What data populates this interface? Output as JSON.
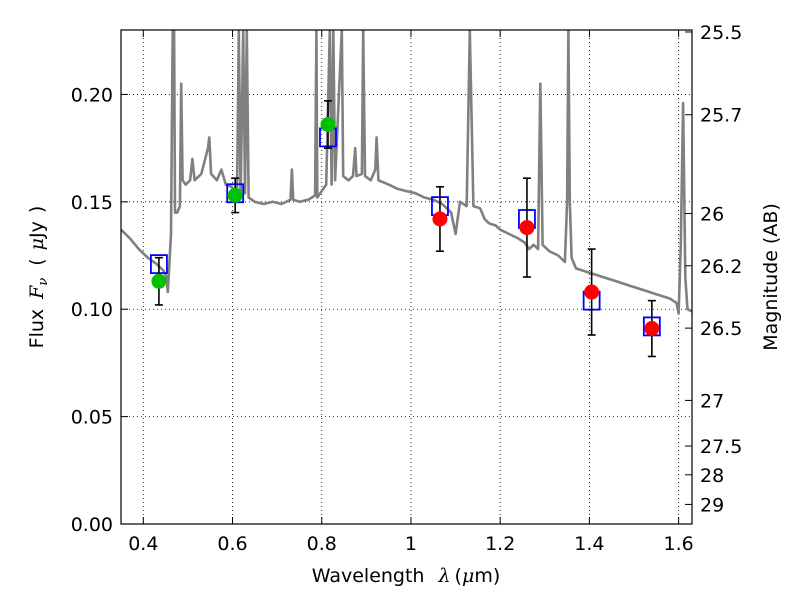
{
  "chart_data": {
    "type": "scatter",
    "xlabel": "Wavelength",
    "xlabel_symbol": "λ",
    "xlabel_unit_open": "(",
    "xlabel_unit_mu": "μ",
    "xlabel_unit_rest": "m)",
    "ylabel": "Flux",
    "ylabel_symbol": "F",
    "ylabel_symbol_sub": "ν",
    "ylabel_unit_open": "(",
    "ylabel_unit_mu": "μ",
    "ylabel_unit_rest": "Jy",
    "ylabel_unit_close": ")",
    "y2label": "Magnitude (AB)",
    "xlim": [
      0.35,
      1.63
    ],
    "ylim": [
      0.0,
      0.23
    ],
    "grid": true,
    "xticks": [
      0.4,
      0.6,
      0.8,
      1.0,
      1.2,
      1.4,
      1.6
    ],
    "xtick_labels": [
      "0.4",
      "0.6",
      "0.8",
      "1",
      "1.2",
      "1.4",
      "1.6"
    ],
    "yticks": [
      0.0,
      0.05,
      0.1,
      0.15,
      0.2
    ],
    "ytick_labels": [
      "0.00",
      "0.05",
      "0.10",
      "0.15",
      "0.20"
    ],
    "y2ticks": [
      {
        "label": "25.5",
        "mag": 25.5
      },
      {
        "label": "25.7",
        "mag": 25.7
      },
      {
        "label": "26",
        "mag": 26.0
      },
      {
        "label": "26.2",
        "mag": 26.2
      },
      {
        "label": "26.5",
        "mag": 26.5
      },
      {
        "label": "27",
        "mag": 27.0
      },
      {
        "label": "27.5",
        "mag": 27.5
      },
      {
        "label": "28",
        "mag": 28.0
      },
      {
        "label": "29",
        "mag": 29.0
      }
    ],
    "colors": {
      "model": "#808080",
      "model_fluxes": "#0000ff",
      "hst_points": "#00c000",
      "ir_points": "#ff0000",
      "errorbar": "#000000",
      "grid": "#000000"
    },
    "observed": [
      {
        "x": 0.435,
        "y": 0.113,
        "err": 0.011,
        "color": "green"
      },
      {
        "x": 0.606,
        "y": 0.153,
        "err": 0.008,
        "color": "green"
      },
      {
        "x": 0.814,
        "y": 0.186,
        "err": 0.011,
        "color": "green"
      },
      {
        "x": 1.065,
        "y": 0.142,
        "err": 0.015,
        "color": "red"
      },
      {
        "x": 1.26,
        "y": 0.138,
        "err": 0.023,
        "color": "red"
      },
      {
        "x": 1.405,
        "y": 0.108,
        "err": 0.02,
        "color": "red"
      },
      {
        "x": 1.54,
        "y": 0.091,
        "err": 0.013,
        "color": "red"
      }
    ],
    "model_fluxes": [
      {
        "x": 0.435,
        "y": 0.121
      },
      {
        "x": 0.606,
        "y": 0.154
      },
      {
        "x": 0.814,
        "y": 0.18
      },
      {
        "x": 1.065,
        "y": 0.148
      },
      {
        "x": 1.26,
        "y": 0.142
      },
      {
        "x": 1.405,
        "y": 0.104
      },
      {
        "x": 1.54,
        "y": 0.092
      }
    ],
    "model_spectrum": [
      [
        0.35,
        0.137
      ],
      [
        0.37,
        0.133
      ],
      [
        0.39,
        0.128
      ],
      [
        0.41,
        0.124
      ],
      [
        0.43,
        0.121
      ],
      [
        0.445,
        0.118
      ],
      [
        0.452,
        0.115
      ],
      [
        0.455,
        0.108
      ],
      [
        0.458,
        0.12
      ],
      [
        0.462,
        0.135
      ],
      [
        0.466,
        0.23
      ],
      [
        0.469,
        0.23
      ],
      [
        0.471,
        0.145
      ],
      [
        0.476,
        0.145
      ],
      [
        0.482,
        0.148
      ],
      [
        0.485,
        0.205
      ],
      [
        0.488,
        0.16
      ],
      [
        0.495,
        0.158
      ],
      [
        0.505,
        0.16
      ],
      [
        0.51,
        0.17
      ],
      [
        0.515,
        0.16
      ],
      [
        0.53,
        0.163
      ],
      [
        0.545,
        0.175
      ],
      [
        0.548,
        0.18
      ],
      [
        0.552,
        0.163
      ],
      [
        0.565,
        0.16
      ],
      [
        0.575,
        0.165
      ],
      [
        0.585,
        0.158
      ],
      [
        0.598,
        0.157
      ],
      [
        0.604,
        0.155
      ],
      [
        0.61,
        0.152
      ],
      [
        0.614,
        0.23
      ],
      [
        0.618,
        0.152
      ],
      [
        0.624,
        0.23
      ],
      [
        0.628,
        0.154
      ],
      [
        0.632,
        0.23
      ],
      [
        0.636,
        0.152
      ],
      [
        0.65,
        0.15
      ],
      [
        0.67,
        0.149
      ],
      [
        0.69,
        0.15
      ],
      [
        0.71,
        0.149
      ],
      [
        0.73,
        0.151
      ],
      [
        0.733,
        0.165
      ],
      [
        0.736,
        0.151
      ],
      [
        0.75,
        0.15
      ],
      [
        0.77,
        0.151
      ],
      [
        0.785,
        0.153
      ],
      [
        0.788,
        0.23
      ],
      [
        0.79,
        0.152
      ],
      [
        0.8,
        0.155
      ],
      [
        0.81,
        0.158
      ],
      [
        0.818,
        0.23
      ],
      [
        0.822,
        0.158
      ],
      [
        0.826,
        0.23
      ],
      [
        0.83,
        0.16
      ],
      [
        0.845,
        0.23
      ],
      [
        0.848,
        0.162
      ],
      [
        0.86,
        0.16
      ],
      [
        0.87,
        0.162
      ],
      [
        0.875,
        0.175
      ],
      [
        0.878,
        0.162
      ],
      [
        0.89,
        0.163
      ],
      [
        0.893,
        0.23
      ],
      [
        0.897,
        0.162
      ],
      [
        0.91,
        0.16
      ],
      [
        0.92,
        0.165
      ],
      [
        0.923,
        0.18
      ],
      [
        0.927,
        0.16
      ],
      [
        0.95,
        0.158
      ],
      [
        0.97,
        0.156
      ],
      [
        0.99,
        0.155
      ],
      [
        1.01,
        0.154
      ],
      [
        1.03,
        0.152
      ],
      [
        1.05,
        0.151
      ],
      [
        1.07,
        0.149
      ],
      [
        1.09,
        0.145
      ],
      [
        1.1,
        0.135
      ],
      [
        1.11,
        0.15
      ],
      [
        1.125,
        0.148
      ],
      [
        1.132,
        0.23
      ],
      [
        1.14,
        0.148
      ],
      [
        1.155,
        0.147
      ],
      [
        1.165,
        0.142
      ],
      [
        1.175,
        0.14
      ],
      [
        1.19,
        0.139
      ],
      [
        1.2,
        0.137
      ],
      [
        1.22,
        0.135
      ],
      [
        1.24,
        0.133
      ],
      [
        1.255,
        0.131
      ],
      [
        1.265,
        0.128
      ],
      [
        1.275,
        0.13
      ],
      [
        1.285,
        0.128
      ],
      [
        1.29,
        0.205
      ],
      [
        1.295,
        0.13
      ],
      [
        1.31,
        0.127
      ],
      [
        1.33,
        0.125
      ],
      [
        1.345,
        0.122
      ],
      [
        1.35,
        0.15
      ],
      [
        1.353,
        0.23
      ],
      [
        1.356,
        0.15
      ],
      [
        1.36,
        0.124
      ],
      [
        1.37,
        0.119
      ],
      [
        1.4,
        0.117
      ],
      [
        1.43,
        0.115
      ],
      [
        1.46,
        0.113
      ],
      [
        1.49,
        0.111
      ],
      [
        1.52,
        0.109
      ],
      [
        1.55,
        0.107
      ],
      [
        1.58,
        0.105
      ],
      [
        1.595,
        0.103
      ],
      [
        1.6,
        0.098
      ],
      [
        1.605,
        0.13
      ],
      [
        1.61,
        0.196
      ],
      [
        1.615,
        0.115
      ],
      [
        1.62,
        0.1
      ],
      [
        1.63,
        0.099
      ]
    ]
  }
}
